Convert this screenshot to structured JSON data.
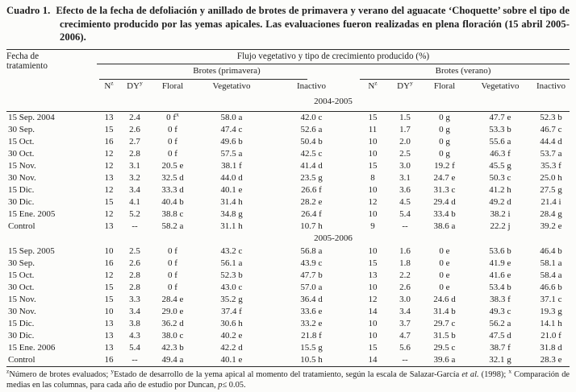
{
  "caption": {
    "label": "Cuadro 1.",
    "text": "Efecto de la fecha de defoliación y anillado de brotes de primavera y verano del aguacate ‘Choquette’ sobre el tipo de crecimiento producido por las yemas apicales. Las evaluaciones fueron realizadas en plena floración (15 abril 2005-2006)."
  },
  "header": {
    "col1": [
      "Fecha de",
      "tratamiento"
    ],
    "span_header": "Flujo vegetativo y tipo de crecimiento producido (%)",
    "groups": [
      "Brotes (primavera)",
      "Brotes (verano)"
    ],
    "sub": [
      "N^{z}",
      "DY^{y}",
      "Floral",
      "Vegetativo",
      "Inactivo",
      "N^{z}",
      "DY^{y}",
      "Floral",
      "Vegetativo",
      "Inactivo"
    ]
  },
  "sections": [
    {
      "year": "2004-2005",
      "rows": [
        [
          "15 Sep. 2004",
          "13",
          "2.4",
          "0 f^{x}",
          "58.0 a",
          "42.0 c",
          "15",
          "1.5",
          "0 g",
          "47.7 e",
          "52.3 b"
        ],
        [
          "30 Sep.",
          "15",
          "2.6",
          "0 f",
          "47.4 c",
          "52.6 a",
          "11",
          "1.7",
          "0 g",
          "53.3 b",
          "46.7 c"
        ],
        [
          "15 Oct.",
          "16",
          "2.7",
          "0 f",
          "49.6 b",
          "50.4 b",
          "10",
          "2.0",
          "0 g",
          "55.6 a",
          "44.4 d"
        ],
        [
          "30 Oct.",
          "12",
          "2.8",
          "0 f",
          "57.5 a",
          "42.5 c",
          "10",
          "2.5",
          "0 g",
          "46.3 f",
          "53.7 a"
        ],
        [
          "15 Nov.",
          "12",
          "3.1",
          "20.5 e",
          "38.1 f",
          "41.4 d",
          "15",
          "3.0",
          "19.2 f",
          "45.5 g",
          "35.3 f"
        ],
        [
          "30 Nov.",
          "13",
          "3.2",
          "32.5 d",
          "44.0 d",
          "23.5 g",
          "8",
          "3.1",
          "24.7 e",
          "50.3 c",
          "25.0 h"
        ],
        [
          "15 Dic.",
          "12",
          "3.4",
          "33.3 d",
          "40.1 e",
          "26.6 f",
          "10",
          "3.6",
          "31.3 c",
          "41.2 h",
          "27.5 g"
        ],
        [
          "30 Dic.",
          "15",
          "4.1",
          "40.4 b",
          "31.4 h",
          "28.2 e",
          "12",
          "4.5",
          "29.4 d",
          "49.2 d",
          "21.4 i"
        ],
        [
          "15 Ene. 2005",
          "12",
          "5.2",
          "38.8 c",
          "34.8 g",
          "26.4 f",
          "10",
          "5.4",
          "33.4 b",
          "38.2 i",
          "28.4 g"
        ],
        [
          "Control",
          "13",
          "--",
          "58.2 a",
          "31.1 h",
          "10.7 h",
          "9",
          "--",
          "38.6 a",
          "22.2 j",
          "39.2 e"
        ]
      ]
    },
    {
      "year": "2005-2006",
      "rows": [
        [
          "15 Sep. 2005",
          "10",
          "2.5",
          "0 f",
          "43.2 c",
          "56.8 a",
          "10",
          "1.6",
          "0 e",
          "53.6 b",
          "46.4 b"
        ],
        [
          "30 Sep.",
          "16",
          "2.6",
          "0 f",
          "56.1 a",
          "43.9 c",
          "15",
          "1.8",
          "0 e",
          "41.9 e",
          "58.1 a"
        ],
        [
          "15 Oct.",
          "12",
          "2.8",
          "0 f",
          "52.3 b",
          "47.7 b",
          "13",
          "2.2",
          "0 e",
          "41.6 e",
          "58.4 a"
        ],
        [
          "30 Oct.",
          "15",
          "2.8",
          "0 f",
          "43.0 c",
          "57.0 a",
          "10",
          "2.6",
          "0 e",
          "53.4 b",
          "46.6 b"
        ],
        [
          "15 Nov.",
          "15",
          "3.3",
          "28.4 e",
          "35.2 g",
          "36.4 d",
          "12",
          "3.0",
          "24.6 d",
          "38.3 f",
          "37.1 c"
        ],
        [
          "30 Nov.",
          "10",
          "3.4",
          "29.0 e",
          "37.4 f",
          "33.6 e",
          "14",
          "3.4",
          "31.4 b",
          "49.3 c",
          "19.3 g"
        ],
        [
          "15 Dic.",
          "13",
          "3.8",
          "36.2 d",
          "30.6 h",
          "33.2 e",
          "10",
          "3.7",
          "29.7 c",
          "56.2 a",
          "14.1 h"
        ],
        [
          "30 Dic.",
          "13",
          "4.3",
          "38.0 c",
          "40.2 e",
          "21.8 f",
          "10",
          "4.7",
          "31.5 b",
          "47.5 d",
          "21.0 f"
        ],
        [
          "15 Ene. 2006",
          "13",
          "5.4",
          "42.3 b",
          "42.2 d",
          "15.5 g",
          "15",
          "5.6",
          "29.5 c",
          "38.7 f",
          "31.8 d"
        ],
        [
          "Control",
          "16",
          "--",
          "49.4 a",
          "40.1 e",
          "10.5 h",
          "14",
          "--",
          "39.6 a",
          "32.1 g",
          "28.3 e"
        ]
      ]
    }
  ],
  "footnote": {
    "parts": [
      {
        "text": "z",
        "sup": true
      },
      {
        "text": "Número de brotes evaluados; "
      },
      {
        "text": "y",
        "sup": true
      },
      {
        "text": "Estado de desarrollo de la yema apical al momento del tratamiento, según la escala de Salazar-García "
      },
      {
        "text": "et al.",
        "italic": true
      },
      {
        "text": " (1998); "
      },
      {
        "text": "x",
        "sup": true
      },
      {
        "text": " Comparación de medias en las columnas, para cada año de estudio por Duncan, "
      },
      {
        "text": "p",
        "italic": true
      },
      {
        "text": "≤ 0.05."
      }
    ]
  }
}
